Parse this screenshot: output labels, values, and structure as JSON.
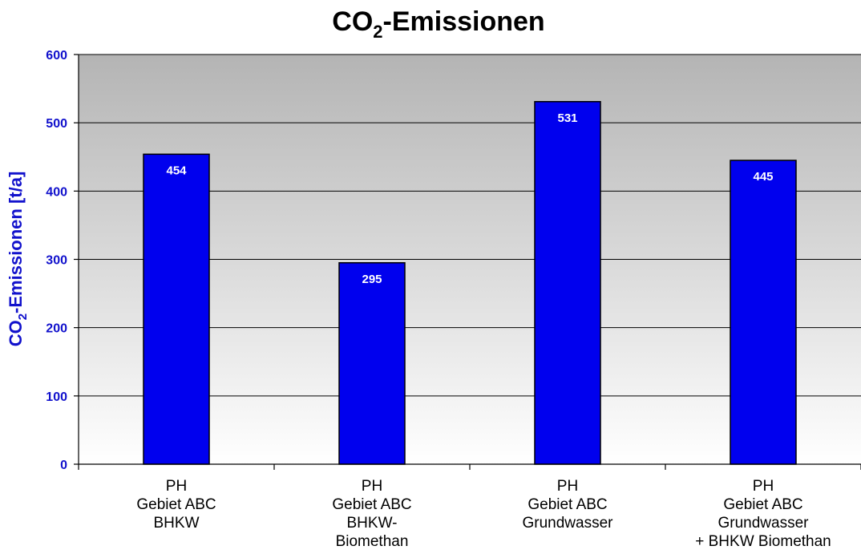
{
  "chart_data": {
    "type": "bar",
    "title": "CO2-Emissionen",
    "title_parts": {
      "main": "CO",
      "sub": "2",
      "rest": "-Emissionen"
    },
    "ylabel": "CO2-Emissionen [t/a]",
    "ylabel_parts": {
      "main": "CO",
      "sub": "2",
      "rest": "-Emissionen [t/a]"
    },
    "xlabel": "",
    "ylim": [
      0,
      600
    ],
    "yticks": [
      0,
      100,
      200,
      300,
      400,
      500,
      600
    ],
    "grid": true,
    "legend": "none",
    "categories": [
      [
        "PH",
        "Gebiet ABC",
        "BHKW"
      ],
      [
        "PH",
        "Gebiet ABC",
        "BHKW-",
        "Biomethan"
      ],
      [
        "PH",
        "Gebiet ABC",
        "Grundwasser"
      ],
      [
        "PH",
        "Gebiet ABC",
        "Grundwasser",
        "+ BHKW Biomethan"
      ]
    ],
    "values": [
      454,
      295,
      531,
      445
    ],
    "data_labels": [
      "454",
      "295",
      "531",
      "445"
    ]
  },
  "colors": {
    "bar_fill": "#0000ee",
    "bar_stroke": "#000000",
    "axis_text": "#1111cc",
    "plot_bg_top": "#b4b4b4",
    "plot_bg_bottom": "#ffffff",
    "gridline": "#000000"
  }
}
